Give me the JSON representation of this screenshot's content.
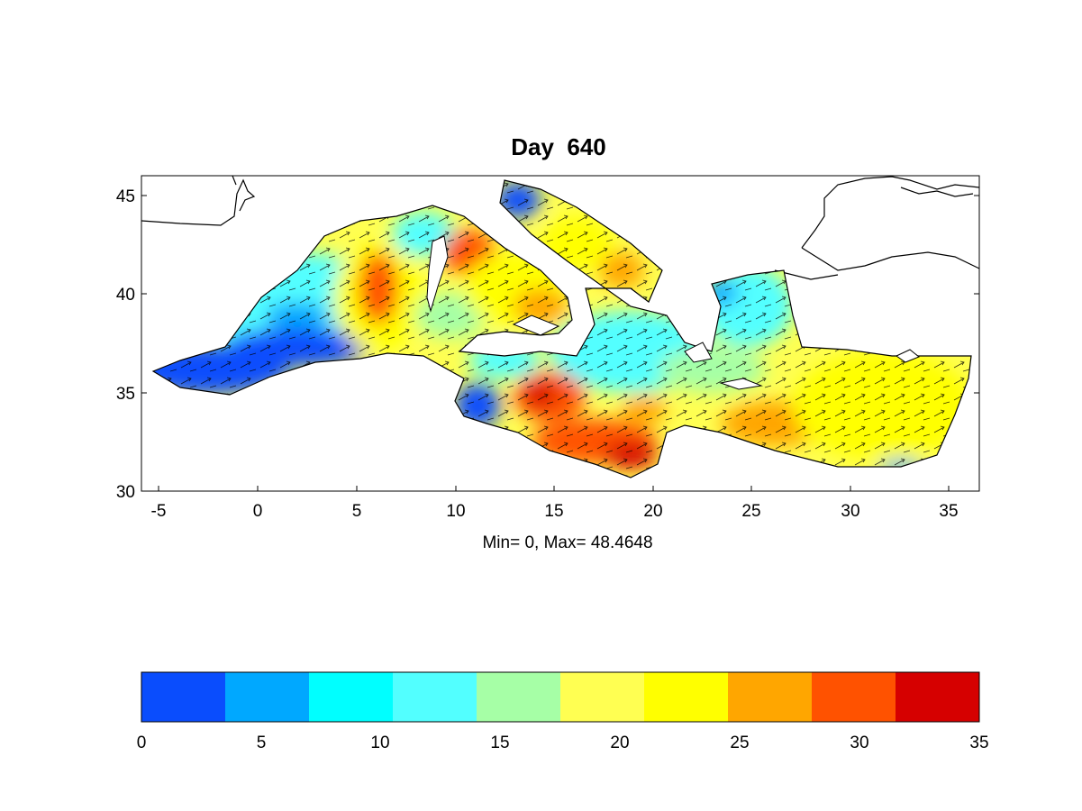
{
  "title": "Day  640",
  "subtitle": "Min= 0,  Max= 48.4648",
  "map": {
    "lon_range": [
      -6,
      36.5
    ],
    "lat_range": [
      30,
      46
    ],
    "x_ticks": [
      "-5",
      "0",
      "5",
      "10",
      "15",
      "20",
      "25",
      "30",
      "35"
    ],
    "x_tick_values": [
      -5,
      0,
      5,
      10,
      15,
      20,
      25,
      30,
      35
    ],
    "y_ticks": [
      "30",
      "35",
      "40",
      "45"
    ],
    "y_tick_values": [
      30,
      35,
      40,
      45
    ],
    "field": "scalar field with velocity vector arrows"
  },
  "colorbar": {
    "range": [
      0,
      35
    ],
    "colors": [
      "#0a4dfd",
      "#00a8ff",
      "#00ffff",
      "#52ffff",
      "#a6ffa6",
      "#ffff52",
      "#ffff00",
      "#ffa600",
      "#ff5200",
      "#d60000"
    ],
    "ticks": [
      "0",
      "5",
      "10",
      "15",
      "20",
      "25",
      "30",
      "35"
    ],
    "tick_values": [
      0,
      5,
      10,
      15,
      20,
      25,
      30,
      35
    ]
  }
}
